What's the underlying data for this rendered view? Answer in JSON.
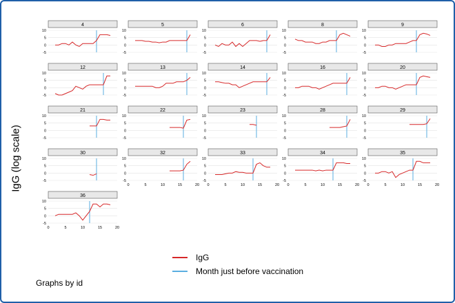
{
  "chart_data": {
    "type": "line",
    "title": "",
    "ylabel": "IgG (log scale)",
    "xlabel": "",
    "note": "Graphs by id",
    "xlim": [
      0,
      20
    ],
    "ylim": [
      -5,
      10
    ],
    "xticks": [
      0,
      5,
      10,
      15,
      20
    ],
    "yticks": [
      -5,
      0,
      5,
      10
    ],
    "grid": true,
    "legend": {
      "position": "bottom-center",
      "entries": [
        {
          "label": "IgG",
          "color": "#d62728"
        },
        {
          "label": "Month just before vaccination",
          "color": "#5aaee0"
        }
      ]
    },
    "panels": [
      {
        "id": "4",
        "vline": 14,
        "x": [
          2,
          3,
          4,
          5,
          6,
          7,
          8,
          9,
          10,
          11,
          12,
          13,
          14,
          15,
          16,
          17,
          18
        ],
        "y": [
          0,
          0,
          1,
          1,
          0,
          2,
          0,
          -1,
          1,
          1,
          1,
          1,
          3,
          7,
          7,
          7,
          6.5
        ]
      },
      {
        "id": "5",
        "vline": 17,
        "x": [
          2,
          3,
          4,
          5,
          6,
          7,
          8,
          9,
          10,
          11,
          12,
          13,
          14,
          15,
          16,
          17,
          18
        ],
        "y": [
          3,
          3,
          3,
          2.5,
          2.5,
          2,
          2,
          1.5,
          2,
          2,
          3,
          3,
          3,
          3,
          3,
          3,
          7
        ]
      },
      {
        "id": "6",
        "vline": 17,
        "x": [
          2,
          3,
          4,
          5,
          6,
          7,
          8,
          9,
          10,
          11,
          12,
          13,
          14,
          15,
          16,
          17,
          18
        ],
        "y": [
          0,
          -1,
          1,
          0,
          0,
          2,
          -1,
          1,
          -1,
          1,
          3,
          3,
          3,
          2.5,
          3,
          3,
          7
        ]
      },
      {
        "id": "8",
        "vline": 14,
        "x": [
          2,
          3,
          4,
          5,
          6,
          7,
          8,
          9,
          10,
          11,
          12,
          13,
          14,
          15,
          16,
          17,
          18
        ],
        "y": [
          4,
          3,
          3,
          2,
          2,
          2,
          1,
          1,
          2,
          2,
          3,
          3,
          3,
          7,
          8,
          7,
          6
        ]
      },
      {
        "id": "9",
        "vline": 14,
        "x": [
          2,
          3,
          4,
          5,
          6,
          7,
          8,
          9,
          10,
          11,
          12,
          13,
          14,
          15,
          16,
          17,
          18
        ],
        "y": [
          0,
          0,
          -1,
          -1,
          0,
          0,
          1,
          1,
          1,
          1,
          2,
          3,
          3,
          7,
          8,
          7.5,
          6.5
        ]
      },
      {
        "id": "12",
        "vline": 16,
        "x": [
          2,
          3,
          4,
          5,
          6,
          7,
          8,
          9,
          10,
          11,
          12,
          13,
          14,
          15,
          16,
          17,
          18
        ],
        "y": [
          -4,
          -5,
          -5,
          -4,
          -3,
          -2,
          1,
          0,
          -1,
          1,
          2,
          2,
          2,
          2,
          2,
          8,
          8
        ]
      },
      {
        "id": "13",
        "vline": 17,
        "x": [
          2,
          3,
          4,
          5,
          6,
          7,
          8,
          9,
          10,
          11,
          12,
          13,
          14,
          15,
          16,
          17,
          18
        ],
        "y": [
          1,
          1,
          1,
          1,
          1,
          1,
          0,
          0,
          1,
          3,
          3,
          3,
          4,
          4,
          4,
          5,
          7
        ]
      },
      {
        "id": "14",
        "vline": 17,
        "x": [
          2,
          3,
          4,
          5,
          6,
          7,
          8,
          9,
          10,
          11,
          12,
          13,
          14,
          15,
          16,
          17,
          18
        ],
        "y": [
          4,
          4,
          3.5,
          3,
          3,
          2,
          2,
          0,
          1,
          2,
          3,
          4,
          4,
          4,
          4,
          4,
          7
        ]
      },
      {
        "id": "16",
        "vline": 17,
        "x": [
          2,
          3,
          4,
          5,
          6,
          7,
          8,
          9,
          10,
          11,
          12,
          13,
          14,
          15,
          16,
          17,
          18
        ],
        "y": [
          0,
          0,
          1,
          1,
          1,
          0,
          0,
          -1,
          0,
          1,
          2,
          3,
          3,
          3,
          3,
          3,
          7
        ]
      },
      {
        "id": "20",
        "vline": 14,
        "x": [
          2,
          3,
          4,
          5,
          6,
          7,
          8,
          9,
          10,
          11,
          12,
          13,
          14,
          15,
          16,
          17,
          18
        ],
        "y": [
          0,
          0,
          1,
          1,
          0,
          0,
          -1,
          0,
          1,
          2,
          2,
          2,
          2,
          7,
          8,
          7.5,
          7
        ]
      },
      {
        "id": "21",
        "vline": 14,
        "x": [
          12,
          13,
          14,
          15,
          16,
          17,
          18
        ],
        "y": [
          3,
          3,
          3,
          7.5,
          7.5,
          7,
          7
        ]
      },
      {
        "id": "22",
        "vline": 16,
        "x": [
          12,
          13,
          14,
          15,
          16,
          17,
          18
        ],
        "y": [
          2,
          2,
          2,
          2,
          1.5,
          7,
          7.5
        ]
      },
      {
        "id": "23",
        "vline": 14,
        "x": [
          12,
          13,
          14
        ],
        "y": [
          4,
          4,
          3.5
        ]
      },
      {
        "id": "28",
        "vline": 17,
        "x": [
          12,
          13,
          14,
          15,
          16,
          17,
          18
        ],
        "y": [
          2,
          2,
          2,
          2,
          2.5,
          3,
          7.5
        ]
      },
      {
        "id": "29",
        "vline": 17,
        "x": [
          12,
          13,
          14,
          15,
          16,
          17,
          18
        ],
        "y": [
          4,
          4,
          4,
          4,
          4,
          4.5,
          8
        ]
      },
      {
        "id": "30",
        "vline": 14,
        "x": [
          12,
          13,
          14
        ],
        "y": [
          -1,
          -1.5,
          -0.5
        ]
      },
      {
        "id": "32",
        "vline": 16,
        "x": [
          12,
          13,
          14,
          15,
          16,
          17,
          18
        ],
        "y": [
          1.5,
          1.5,
          1.5,
          1.5,
          2,
          6,
          8
        ]
      },
      {
        "id": "33",
        "vline": 13,
        "x": [
          2,
          3,
          4,
          5,
          6,
          7,
          8,
          9,
          10,
          11,
          12,
          13,
          14,
          15,
          16,
          17,
          18
        ],
        "y": [
          -1,
          -1,
          -1,
          -0.5,
          0,
          0,
          1,
          0.5,
          0.5,
          0,
          0,
          0,
          6,
          7,
          5,
          4,
          4
        ]
      },
      {
        "id": "34",
        "vline": 13,
        "x": [
          2,
          3,
          4,
          5,
          6,
          7,
          8,
          9,
          10,
          11,
          12,
          13,
          14,
          15,
          16,
          17,
          18
        ],
        "y": [
          2,
          2,
          2,
          2,
          2,
          2,
          1.5,
          2,
          1.5,
          2,
          2,
          2,
          7,
          7,
          7,
          6.5,
          6.5
        ]
      },
      {
        "id": "35",
        "vline": 13,
        "x": [
          2,
          3,
          4,
          5,
          6,
          7,
          8,
          9,
          10,
          11,
          12,
          13,
          14,
          15,
          16,
          17,
          18
        ],
        "y": [
          0,
          0,
          1,
          1,
          0,
          1,
          -3,
          -1,
          0,
          1,
          2,
          2,
          8,
          8,
          7,
          7,
          7
        ]
      },
      {
        "id": "36",
        "vline": 12,
        "x": [
          2,
          3,
          4,
          5,
          6,
          7,
          8,
          9,
          10,
          11,
          12,
          13,
          14,
          15,
          16,
          17,
          18
        ],
        "y": [
          0,
          1,
          1,
          1,
          1,
          1,
          2,
          0,
          -3,
          0,
          3,
          8,
          8,
          6,
          8,
          8,
          7.5
        ]
      }
    ]
  }
}
